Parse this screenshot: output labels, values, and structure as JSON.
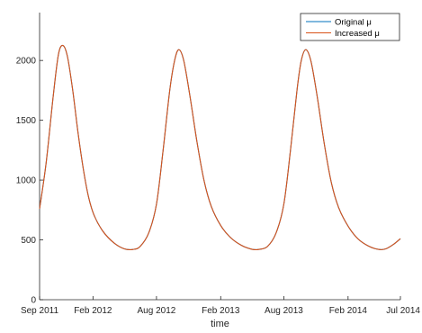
{
  "chart_data": {
    "type": "line",
    "title": "",
    "xlabel": "time",
    "ylabel": "",
    "xlim": [
      "2011-09-01",
      "2014-07-01"
    ],
    "ylim": [
      0,
      2400
    ],
    "yticks": [
      0,
      500,
      1000,
      1500,
      2000
    ],
    "xticks": [
      {
        "date": "2011-09-01",
        "label": "Sep 2011"
      },
      {
        "date": "2012-02-01",
        "label": "Feb 2012"
      },
      {
        "date": "2012-08-01",
        "label": "Aug 2012"
      },
      {
        "date": "2013-02-01",
        "label": "Feb 2013"
      },
      {
        "date": "2013-08-01",
        "label": "Aug 2013"
      },
      {
        "date": "2014-02-01",
        "label": "Feb 2014"
      },
      {
        "date": "2014-07-01",
        "label": "Jul 2014"
      }
    ],
    "grid": false,
    "legend_position": "top-right",
    "series": [
      {
        "name": "Original μ",
        "color": "#0072BD",
        "points": [
          [
            "2011-09-01",
            760
          ],
          [
            "2011-09-20",
            1150
          ],
          [
            "2011-10-10",
            1700
          ],
          [
            "2011-10-25",
            2050
          ],
          [
            "2011-11-07",
            2125
          ],
          [
            "2011-11-20",
            2030
          ],
          [
            "2011-12-05",
            1750
          ],
          [
            "2011-12-20",
            1400
          ],
          [
            "2012-01-05",
            1080
          ],
          [
            "2012-01-20",
            850
          ],
          [
            "2012-02-05",
            700
          ],
          [
            "2012-03-01",
            570
          ],
          [
            "2012-04-01",
            475
          ],
          [
            "2012-05-01",
            425
          ],
          [
            "2012-05-25",
            420
          ],
          [
            "2012-06-15",
            445
          ],
          [
            "2012-07-10",
            560
          ],
          [
            "2012-08-01",
            800
          ],
          [
            "2012-08-20",
            1250
          ],
          [
            "2012-09-08",
            1750
          ],
          [
            "2012-09-22",
            2000
          ],
          [
            "2012-10-04",
            2090
          ],
          [
            "2012-10-18",
            2000
          ],
          [
            "2012-11-05",
            1700
          ],
          [
            "2012-11-25",
            1320
          ],
          [
            "2012-12-15",
            1000
          ],
          [
            "2013-01-05",
            780
          ],
          [
            "2013-02-01",
            620
          ],
          [
            "2013-03-01",
            520
          ],
          [
            "2013-04-01",
            455
          ],
          [
            "2013-05-01",
            422
          ],
          [
            "2013-05-20",
            420
          ],
          [
            "2013-06-15",
            445
          ],
          [
            "2013-07-10",
            560
          ],
          [
            "2013-08-01",
            800
          ],
          [
            "2013-08-20",
            1250
          ],
          [
            "2013-09-08",
            1760
          ],
          [
            "2013-09-20",
            2000
          ],
          [
            "2013-10-03",
            2090
          ],
          [
            "2013-10-18",
            1990
          ],
          [
            "2013-11-05",
            1690
          ],
          [
            "2013-11-25",
            1300
          ],
          [
            "2013-12-15",
            980
          ],
          [
            "2014-01-05",
            770
          ],
          [
            "2014-02-01",
            615
          ],
          [
            "2014-03-01",
            510
          ],
          [
            "2014-04-01",
            448
          ],
          [
            "2014-05-01",
            420
          ],
          [
            "2014-05-20",
            425
          ],
          [
            "2014-06-10",
            460
          ],
          [
            "2014-07-01",
            510
          ]
        ]
      },
      {
        "name": "Increased μ",
        "color": "#D95319",
        "points": [
          [
            "2011-09-01",
            760
          ],
          [
            "2011-09-20",
            1150
          ],
          [
            "2011-10-10",
            1700
          ],
          [
            "2011-10-25",
            2050
          ],
          [
            "2011-11-07",
            2125
          ],
          [
            "2011-11-20",
            2030
          ],
          [
            "2011-12-05",
            1750
          ],
          [
            "2011-12-20",
            1400
          ],
          [
            "2012-01-05",
            1080
          ],
          [
            "2012-01-20",
            850
          ],
          [
            "2012-02-05",
            700
          ],
          [
            "2012-03-01",
            570
          ],
          [
            "2012-04-01",
            475
          ],
          [
            "2012-05-01",
            425
          ],
          [
            "2012-05-25",
            420
          ],
          [
            "2012-06-15",
            445
          ],
          [
            "2012-07-10",
            560
          ],
          [
            "2012-08-01",
            800
          ],
          [
            "2012-08-20",
            1250
          ],
          [
            "2012-09-08",
            1750
          ],
          [
            "2012-09-22",
            2000
          ],
          [
            "2012-10-04",
            2090
          ],
          [
            "2012-10-18",
            2000
          ],
          [
            "2012-11-05",
            1700
          ],
          [
            "2012-11-25",
            1320
          ],
          [
            "2012-12-15",
            1000
          ],
          [
            "2013-01-05",
            780
          ],
          [
            "2013-02-01",
            620
          ],
          [
            "2013-03-01",
            520
          ],
          [
            "2013-04-01",
            455
          ],
          [
            "2013-05-01",
            422
          ],
          [
            "2013-05-20",
            420
          ],
          [
            "2013-06-15",
            445
          ],
          [
            "2013-07-10",
            560
          ],
          [
            "2013-08-01",
            800
          ],
          [
            "2013-08-20",
            1250
          ],
          [
            "2013-09-08",
            1760
          ],
          [
            "2013-09-20",
            2000
          ],
          [
            "2013-10-03",
            2090
          ],
          [
            "2013-10-18",
            1990
          ],
          [
            "2013-11-05",
            1690
          ],
          [
            "2013-11-25",
            1300
          ],
          [
            "2013-12-15",
            980
          ],
          [
            "2014-01-05",
            770
          ],
          [
            "2014-02-01",
            615
          ],
          [
            "2014-03-01",
            510
          ],
          [
            "2014-04-01",
            448
          ],
          [
            "2014-05-01",
            420
          ],
          [
            "2014-05-20",
            425
          ],
          [
            "2014-06-10",
            460
          ],
          [
            "2014-07-01",
            510
          ]
        ]
      }
    ],
    "legend": [
      {
        "label": "Original μ",
        "color": "#0072BD"
      },
      {
        "label": "Increased μ",
        "color": "#D95319"
      }
    ]
  }
}
